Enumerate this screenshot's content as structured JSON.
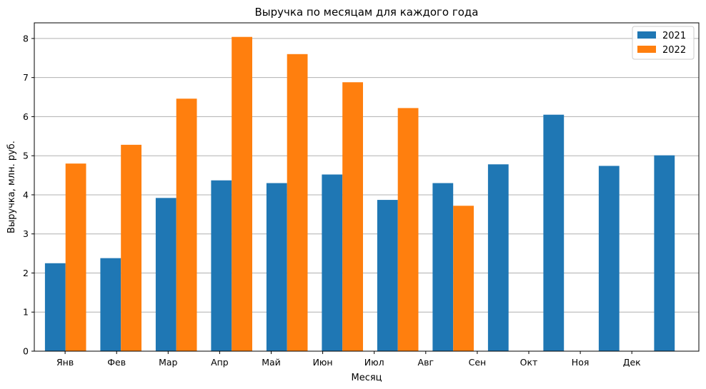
{
  "chart_data": {
    "type": "bar",
    "title": "Выручка по месяцам для каждого года",
    "xlabel": "Месяц",
    "ylabel": "Выручка, млн. руб.",
    "categories": [
      "Янв",
      "Фев",
      "Мар",
      "Апр",
      "Май",
      "Июн",
      "Июл",
      "Авг",
      "Сен",
      "Окт",
      "Ноя",
      "Дек"
    ],
    "series": [
      {
        "name": "2021",
        "color": "#1f77b4",
        "values": [
          2.25,
          2.38,
          3.92,
          4.37,
          4.3,
          4.52,
          3.87,
          4.3,
          4.78,
          6.05,
          4.74,
          5.01
        ]
      },
      {
        "name": "2022",
        "color": "#ff7f0e",
        "values": [
          4.8,
          5.28,
          6.46,
          8.04,
          7.6,
          6.88,
          6.22,
          3.72,
          null,
          null,
          null,
          null
        ]
      }
    ],
    "ylim": [
      0,
      8.4
    ],
    "yticks": [
      0,
      1,
      2,
      3,
      4,
      5,
      6,
      7,
      8
    ],
    "grid": "y",
    "legend_position": "top-right"
  }
}
